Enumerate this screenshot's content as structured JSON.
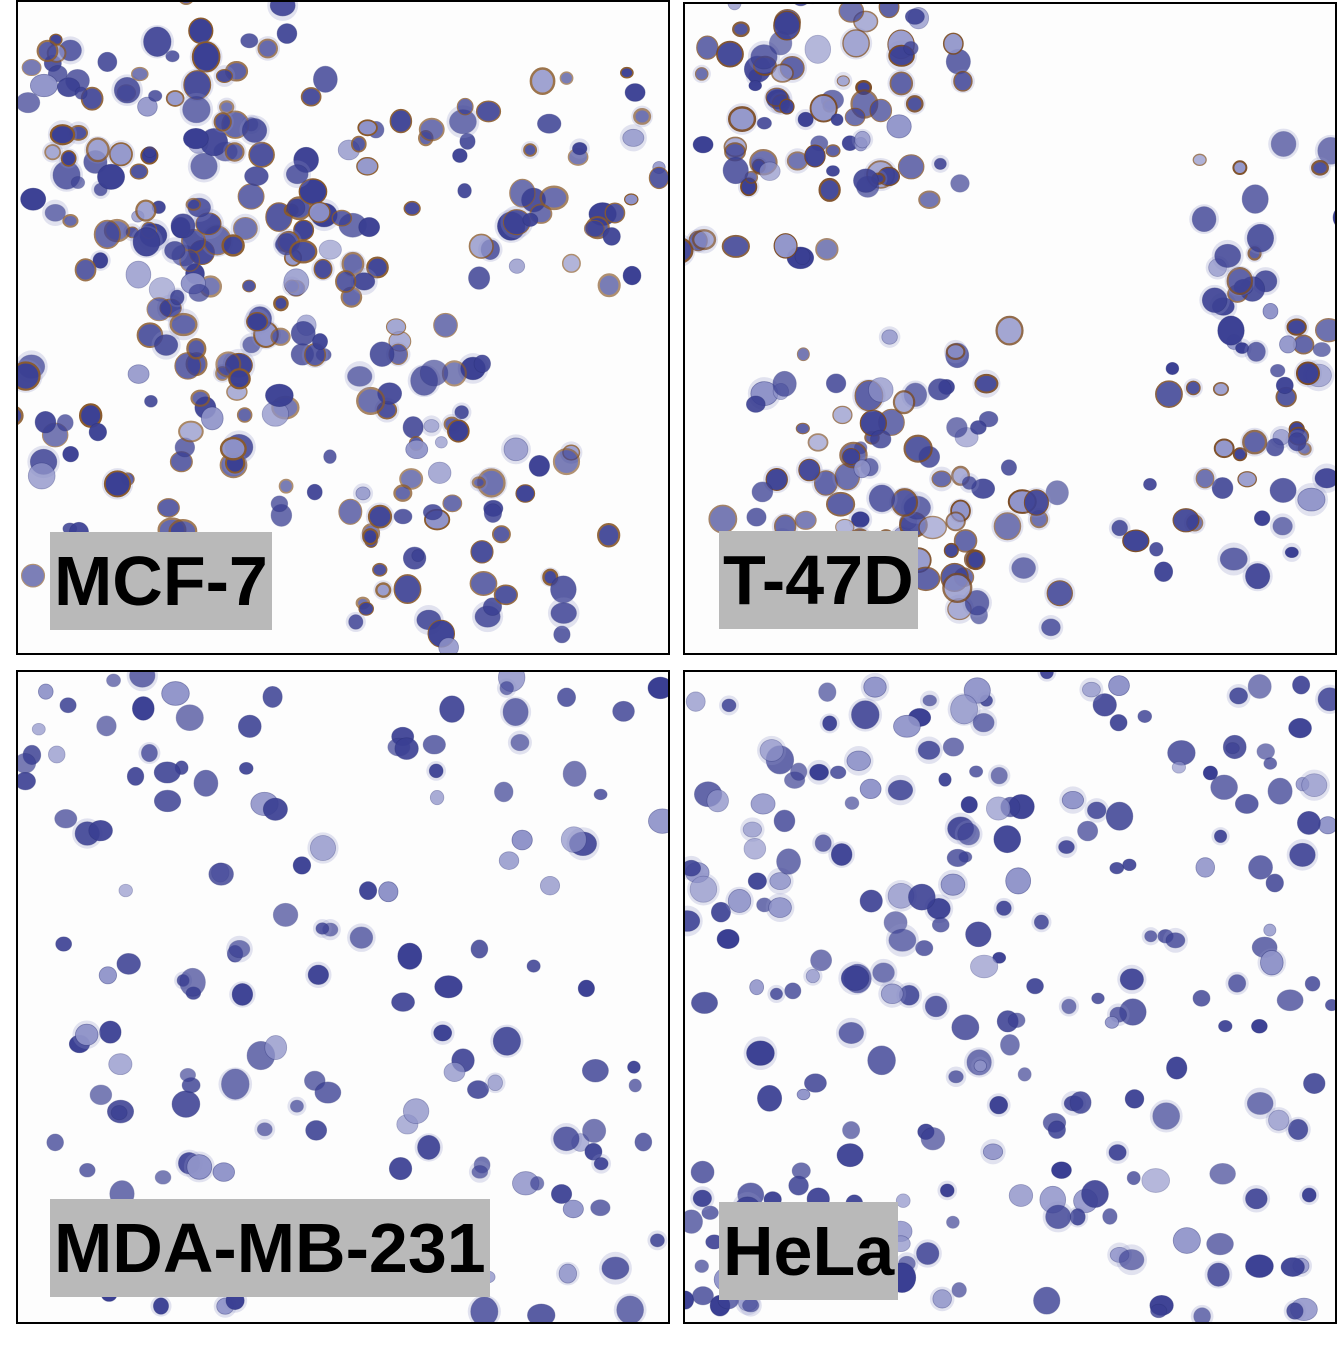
{
  "panels": [
    {
      "label": "MCF-7",
      "membrane_color": "#8a5a2b"
    },
    {
      "label": "T-47D",
      "membrane_color": "#7a4a22"
    },
    {
      "label": "MDA-MB-231",
      "membrane_color": ""
    },
    {
      "label": "HeLa",
      "membrane_color": ""
    }
  ],
  "colors": {
    "nucleus": "#3a3f93",
    "nucleus_light": "#8f93c9",
    "background": "#fdfdfd",
    "label_bg": "#b9b9b9"
  }
}
